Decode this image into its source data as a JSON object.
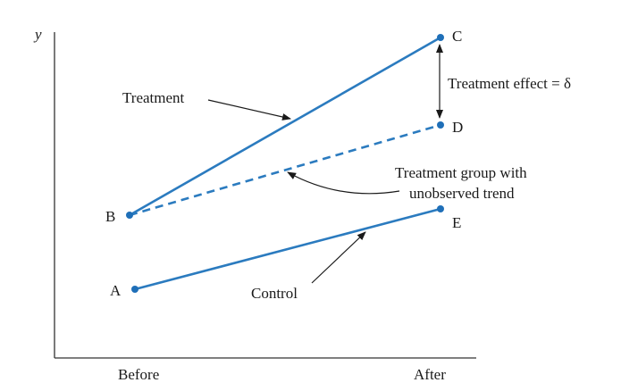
{
  "axes": {
    "y_label": "y",
    "x_labels": [
      "Before",
      "After"
    ]
  },
  "points": {
    "A": "A",
    "B": "B",
    "C": "C",
    "D": "D",
    "E": "E"
  },
  "annotations": {
    "treatment": "Treatment",
    "control": "Control",
    "unobserved_line1": "Treatment group with",
    "unobserved_line2": "unobserved trend",
    "effect": "Treatment effect = δ"
  },
  "colors": {
    "line": "#2b7bbf",
    "point": "#1f6fb8",
    "text": "#1a1a1a",
    "axis": "#333333"
  }
}
